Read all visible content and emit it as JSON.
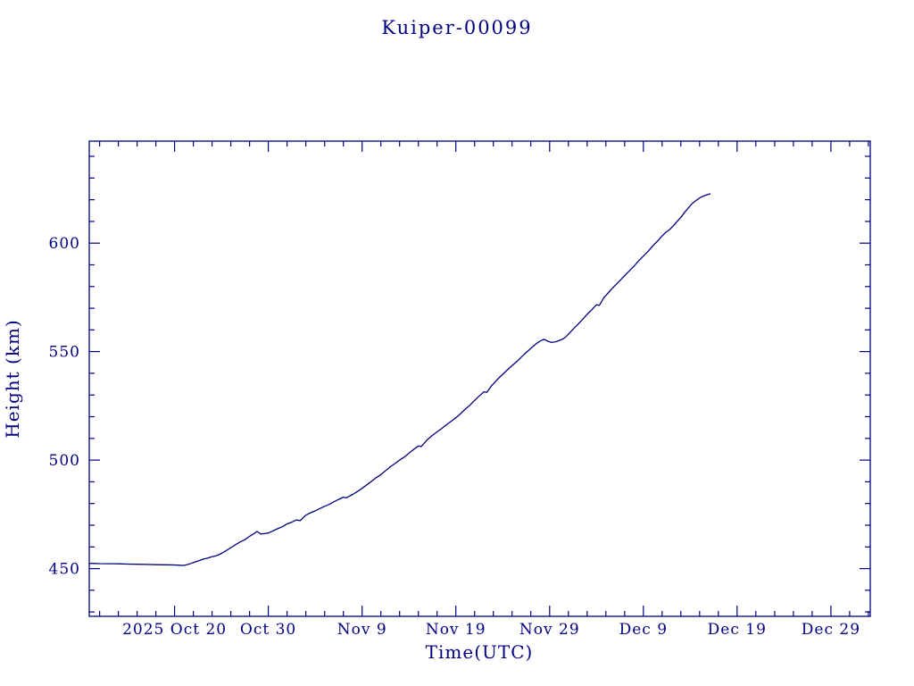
{
  "page": {
    "background": "#ffffff"
  },
  "chart_data": {
    "type": "line",
    "title": "Kuiper-00099",
    "xlabel": "Time(UTC)",
    "ylabel": "Height (km)",
    "text_color": "#000080",
    "axis_color": "#000080",
    "line_color": "#000080",
    "grid": false,
    "legend": "none",
    "x_axis": {
      "unit": "days relative to 2025 Oct 20 (UTC)",
      "min": -9.1,
      "max": 74.2,
      "minor_step": 2,
      "major_ticks": [
        {
          "day": 0,
          "label": "2025 Oct 20"
        },
        {
          "day": 10,
          "label": "Oct 30"
        },
        {
          "day": 20,
          "label": "Nov 9"
        },
        {
          "day": 30,
          "label": "Nov 19"
        },
        {
          "day": 40,
          "label": "Nov 29"
        },
        {
          "day": 50,
          "label": "Dec 9"
        },
        {
          "day": 60,
          "label": "Dec 19"
        },
        {
          "day": 70,
          "label": "Dec 29"
        }
      ]
    },
    "y_axis": {
      "unit": "km",
      "min": 428,
      "max": 647,
      "minor_step": 10,
      "major_ticks": [
        450,
        500,
        550,
        600
      ]
    },
    "series": [
      {
        "name": "Kuiper-00099 orbital height",
        "points": [
          [
            -9.1,
            452.4
          ],
          [
            -8.5,
            452.35
          ],
          [
            -8,
            452.3
          ],
          [
            -7,
            452.25
          ],
          [
            -6,
            452.2
          ],
          [
            -5,
            452.1
          ],
          [
            -4,
            452.0
          ],
          [
            -3,
            451.9
          ],
          [
            -2,
            451.8
          ],
          [
            -1,
            451.75
          ],
          [
            0,
            451.65
          ],
          [
            0.5,
            451.55
          ],
          [
            1,
            451.45
          ],
          [
            1.5,
            452.0
          ],
          [
            2,
            452.8
          ],
          [
            2.5,
            453.5
          ],
          [
            3,
            454.3
          ],
          [
            3.5,
            454.8
          ],
          [
            4,
            455.5
          ],
          [
            4.5,
            456.0
          ],
          [
            5,
            457.0
          ],
          [
            5.5,
            458.3
          ],
          [
            6,
            459.6
          ],
          [
            6.5,
            461.0
          ],
          [
            7,
            462.3
          ],
          [
            7.5,
            463.3
          ],
          [
            8,
            464.9
          ],
          [
            8.5,
            466.2
          ],
          [
            8.8,
            467.1
          ],
          [
            9.2,
            465.9
          ],
          [
            9.6,
            466.1
          ],
          [
            10,
            466.4
          ],
          [
            10.5,
            467.4
          ],
          [
            11,
            468.4
          ],
          [
            11.5,
            469.3
          ],
          [
            12,
            470.6
          ],
          [
            12.5,
            471.4
          ],
          [
            13,
            472.4
          ],
          [
            13.4,
            472.1
          ],
          [
            14,
            474.6
          ],
          [
            14.5,
            475.7
          ],
          [
            15,
            476.6
          ],
          [
            15.5,
            477.7
          ],
          [
            16,
            478.7
          ],
          [
            16.5,
            479.6
          ],
          [
            17,
            480.8
          ],
          [
            17.5,
            481.9
          ],
          [
            18,
            482.9
          ],
          [
            18.3,
            482.6
          ],
          [
            19,
            484.2
          ],
          [
            19.5,
            485.5
          ],
          [
            20,
            487.0
          ],
          [
            20.5,
            488.6
          ],
          [
            21,
            490.2
          ],
          [
            21.5,
            491.9
          ],
          [
            22,
            493.3
          ],
          [
            22.5,
            495.1
          ],
          [
            23,
            496.9
          ],
          [
            23.5,
            498.4
          ],
          [
            24,
            500.0
          ],
          [
            24.5,
            501.4
          ],
          [
            25,
            503.2
          ],
          [
            25.5,
            504.9
          ],
          [
            26,
            506.5
          ],
          [
            26.3,
            506.2
          ],
          [
            27,
            509.6
          ],
          [
            27.5,
            511.4
          ],
          [
            28,
            513.0
          ],
          [
            28.5,
            514.6
          ],
          [
            29,
            516.3
          ],
          [
            29.5,
            517.9
          ],
          [
            30,
            519.5
          ],
          [
            30.5,
            521.4
          ],
          [
            31,
            523.5
          ],
          [
            31.5,
            525.3
          ],
          [
            32,
            527.5
          ],
          [
            32.5,
            529.6
          ],
          [
            33,
            531.5
          ],
          [
            33.3,
            531.2
          ],
          [
            33.8,
            534.2
          ],
          [
            34.2,
            536.0
          ],
          [
            34.6,
            537.9
          ],
          [
            35,
            539.5
          ],
          [
            35.5,
            541.6
          ],
          [
            36,
            543.5
          ],
          [
            36.5,
            545.4
          ],
          [
            37,
            547.5
          ],
          [
            37.5,
            549.6
          ],
          [
            38,
            551.5
          ],
          [
            38.5,
            553.4
          ],
          [
            39,
            554.9
          ],
          [
            39.4,
            555.7
          ],
          [
            39.8,
            554.8
          ],
          [
            40.2,
            554.2
          ],
          [
            40.7,
            554.6
          ],
          [
            41.2,
            555.4
          ],
          [
            41.6,
            556.3
          ],
          [
            42,
            558.0
          ],
          [
            42.5,
            560.3
          ],
          [
            43,
            562.5
          ],
          [
            43.5,
            564.8
          ],
          [
            44,
            567.2
          ],
          [
            44.5,
            569.3
          ],
          [
            45,
            571.6
          ],
          [
            45.3,
            571.3
          ],
          [
            45.8,
            574.9
          ],
          [
            46.2,
            576.8
          ],
          [
            46.6,
            578.8
          ],
          [
            47,
            580.6
          ],
          [
            47.5,
            582.7
          ],
          [
            48,
            585.0
          ],
          [
            48.5,
            587.2
          ],
          [
            49,
            589.4
          ],
          [
            49.5,
            591.8
          ],
          [
            50,
            594.0
          ],
          [
            50.5,
            596.2
          ],
          [
            51,
            598.7
          ],
          [
            51.5,
            600.9
          ],
          [
            52,
            603.3
          ],
          [
            52.4,
            605.0
          ],
          [
            52.8,
            606.2
          ],
          [
            53.2,
            608.0
          ],
          [
            53.6,
            610.0
          ],
          [
            54,
            611.9
          ],
          [
            54.4,
            614.2
          ],
          [
            54.8,
            616.2
          ],
          [
            55.2,
            618.2
          ],
          [
            55.6,
            619.6
          ],
          [
            56,
            620.8
          ],
          [
            56.4,
            621.7
          ],
          [
            56.8,
            622.3
          ],
          [
            57.1,
            622.7
          ]
        ]
      }
    ]
  }
}
